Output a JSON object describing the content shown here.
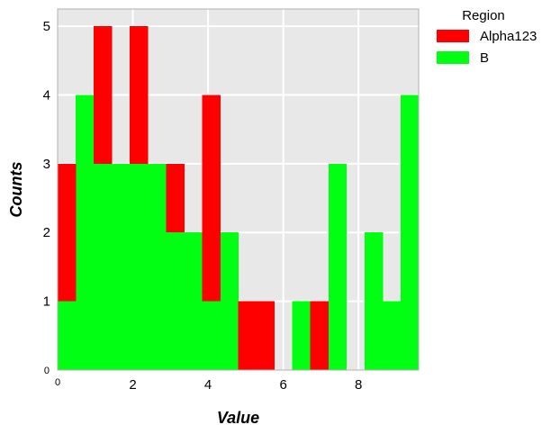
{
  "chart_data": {
    "type": "bar",
    "subtype": "stacked histogram",
    "xlabel": "Value",
    "ylabel": "Counts",
    "xlim": [
      0,
      9.6
    ],
    "ylim": [
      0,
      5.25
    ],
    "x_ticks": [
      {
        "value": 0,
        "label": "0"
      },
      {
        "value": 2,
        "label": "2"
      },
      {
        "value": 4,
        "label": "4"
      },
      {
        "value": 6,
        "label": "6"
      },
      {
        "value": 8,
        "label": "8"
      }
    ],
    "y_ticks": [
      {
        "value": 0,
        "label": "0"
      },
      {
        "value": 1,
        "label": "1"
      },
      {
        "value": 2,
        "label": "2"
      },
      {
        "value": 3,
        "label": "3"
      },
      {
        "value": 4,
        "label": "4"
      },
      {
        "value": 5,
        "label": "5"
      }
    ],
    "grid": true,
    "background": "#e8e8e8",
    "bin_edges": [
      0,
      0.48,
      0.96,
      1.44,
      1.92,
      2.4,
      2.88,
      3.36,
      3.84,
      4.32,
      4.8,
      5.28,
      5.76,
      6.24,
      6.72,
      7.2,
      7.68,
      8.16,
      8.64,
      9.12,
      9.6
    ],
    "series": [
      {
        "name": "B",
        "color": "#00ff12",
        "values": [
          1,
          4,
          3,
          3,
          3,
          3,
          2,
          2,
          1,
          2,
          0,
          0,
          0,
          1,
          0,
          3,
          0,
          2,
          1,
          4
        ]
      },
      {
        "name": "Alpha123",
        "color": "#ff0000",
        "values": [
          2,
          0,
          2,
          0,
          2,
          0,
          1,
          0,
          3,
          0,
          1,
          1,
          0,
          0,
          1,
          0,
          0,
          0,
          0,
          0
        ]
      }
    ],
    "legend": {
      "title": "Region",
      "position": "outside-top-right",
      "entries": [
        {
          "label": "Alpha123",
          "color": "#ff0000"
        },
        {
          "label": "B",
          "color": "#00ff12"
        }
      ]
    }
  }
}
